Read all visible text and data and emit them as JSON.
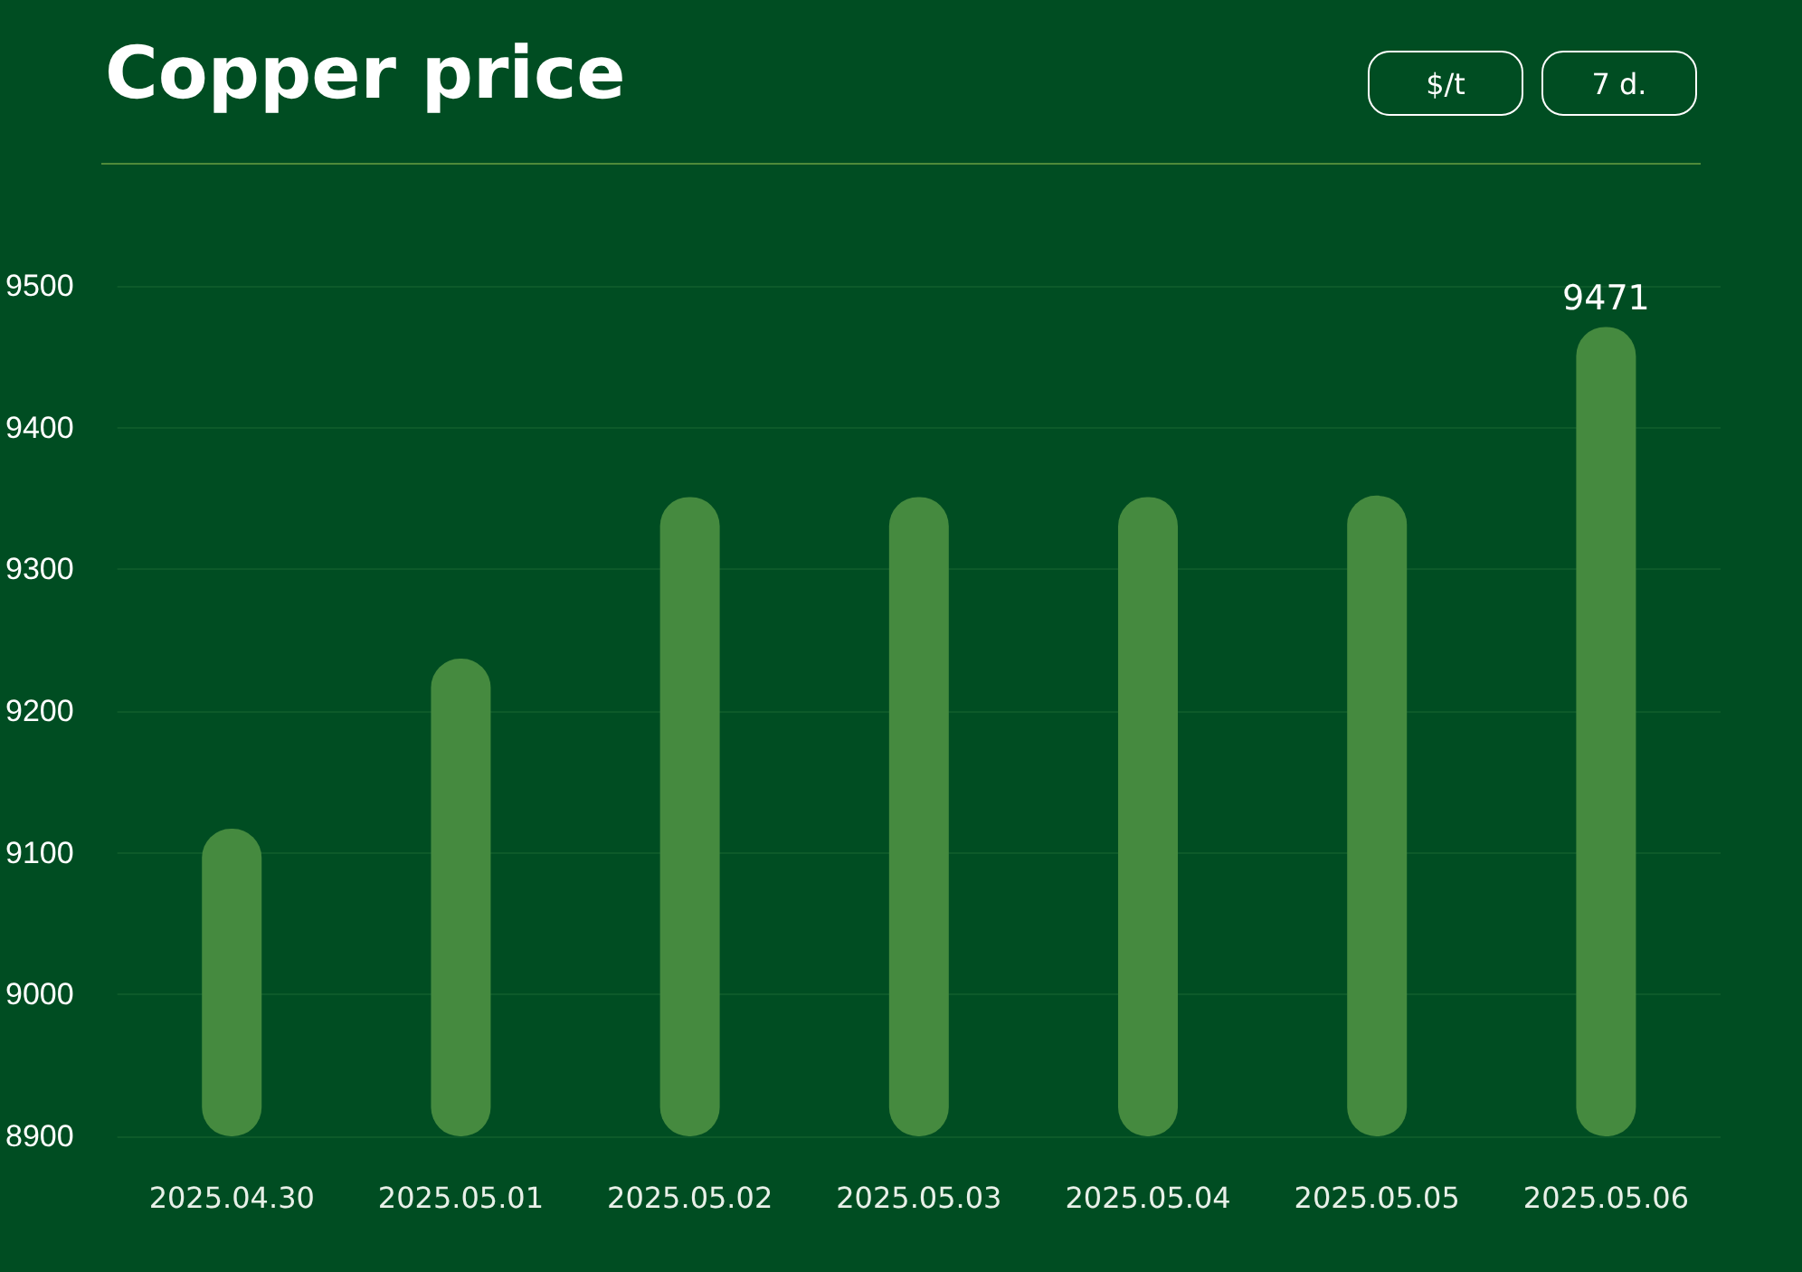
{
  "chart_data": {
    "type": "bar",
    "title": "Copper price",
    "annotations": [
      "$/t",
      "7 d."
    ],
    "categories": [
      "2025.04.30",
      "2025.05.01",
      "2025.05.02",
      "2025.05.03",
      "2025.05.04",
      "2025.05.05",
      "2025.05.06"
    ],
    "values": [
      9117,
      9237,
      9351,
      9351,
      9351,
      9352,
      9471
    ],
    "value_labels": [
      null,
      null,
      null,
      null,
      null,
      null,
      "9471"
    ],
    "color": "#458a3f",
    "ylim": [
      8900,
      9500
    ],
    "yticks": [
      8900,
      9000,
      9100,
      9200,
      9300,
      9400,
      9500
    ],
    "grid": "y"
  }
}
